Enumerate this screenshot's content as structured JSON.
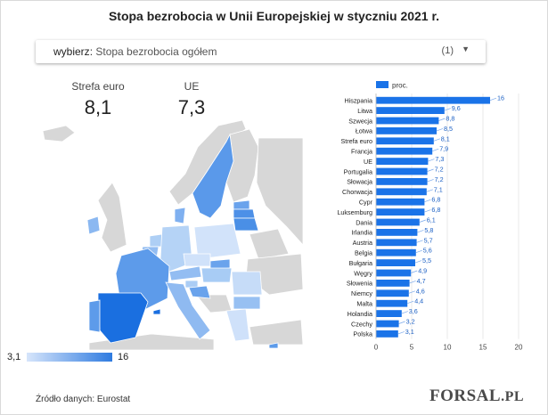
{
  "title": "Stopa bezrobocia w Unii Europejskiej w styczniu 2021 r.",
  "dropdown": {
    "prefix": "wybierz",
    "value": "Stopa bezrobocia ogółem",
    "count": "(1)",
    "caret": "▼"
  },
  "kpis": [
    {
      "label": "Strefa euro",
      "value": "8,1"
    },
    {
      "label": "UE",
      "value": "7,3"
    }
  ],
  "map_legend": {
    "min": "3,1",
    "max": "16"
  },
  "source": "Źródło danych: Eurostat",
  "logo": {
    "main": "FORSAL",
    "suffix": ".PL"
  },
  "colors": {
    "bar": "#1a73e8",
    "map_high": "#2f7be0",
    "map_low": "#d6e5fb",
    "map_nodata": "#d7d7d7"
  },
  "chart_data": {
    "type": "bar",
    "orientation": "horizontal",
    "legend": "proc.",
    "legend_position": "top-left",
    "categories": [
      "Hiszpania",
      "Litwa",
      "Szwecja",
      "Łotwa",
      "Strefa euro",
      "Francja",
      "UE",
      "Portugalia",
      "Słowacja",
      "Chorwacja",
      "Cypr",
      "Luksemburg",
      "Dania",
      "Irlandia",
      "Austria",
      "Belgia",
      "Bułgaria",
      "Węgry",
      "Słowenia",
      "Niemcy",
      "Malta",
      "Holandia",
      "Czechy",
      "Polska"
    ],
    "values": [
      16,
      9.6,
      8.8,
      8.5,
      8.1,
      7.9,
      7.3,
      7.2,
      7.2,
      7.1,
      6.8,
      6.8,
      6.1,
      5.8,
      5.7,
      5.6,
      5.5,
      4.9,
      4.7,
      4.6,
      4.4,
      3.6,
      3.2,
      3.1
    ],
    "value_labels": [
      "16",
      "9,6",
      "8,8",
      "8,5",
      "8,1",
      "7,9",
      "7,3",
      "7,2",
      "7,2",
      "7,1",
      "6,8",
      "6,8",
      "6,1",
      "5,8",
      "5,7",
      "5,6",
      "5,5",
      "4,9",
      "4,7",
      "4,6",
      "4,4",
      "3,6",
      "3,2",
      "3,1"
    ],
    "xticks": [
      "0",
      "5",
      "10",
      "15",
      "20"
    ],
    "xlim": [
      0,
      20
    ],
    "grid": true
  }
}
